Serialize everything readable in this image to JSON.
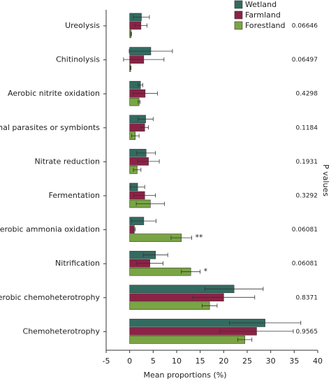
{
  "chart_data": {
    "type": "hbar",
    "categories": [
      "Ureolysis",
      "Chitinolysis",
      "Aerobic nitrite oxidation",
      "Animal parasites or symbionts",
      "Nitrate reduction",
      "Fermentation",
      "Aerobic ammonia oxidation",
      "Nitrification",
      "Aerobic chemoheterotrophy",
      "Chemoheterotrophy"
    ],
    "series": [
      {
        "name": "Wetland",
        "color": "#336b61",
        "values": [
          2.5,
          4.5,
          2.3,
          3.4,
          3.5,
          1.7,
          3.0,
          5.5,
          22.2,
          28.8
        ],
        "errors": [
          1.7,
          4.6,
          0.5,
          1.6,
          2.0,
          1.5,
          2.6,
          2.6,
          6.2,
          7.6
        ]
      },
      {
        "name": "Farmland",
        "color": "#8b2346",
        "values": [
          2.4,
          3.0,
          3.3,
          3.2,
          4.0,
          3.2,
          1.0,
          4.3,
          20.0,
          27.0
        ],
        "errors": [
          1.3,
          4.3,
          2.6,
          0.8,
          2.3,
          2.3,
          0.2,
          2.8,
          6.6,
          7.8
        ]
      },
      {
        "name": "Forestland",
        "color": "#7aa544",
        "values": [
          0.3,
          0.2,
          2.0,
          1.2,
          1.6,
          4.4,
          11.0,
          13.0,
          17.0,
          24.5
        ],
        "errors": [
          0.1,
          0.1,
          0.2,
          0.8,
          0.8,
          3.0,
          2.2,
          2.0,
          1.6,
          1.5
        ]
      }
    ],
    "p_values": [
      "0.06646",
      "0.06497",
      "0.4298",
      "0.1184",
      "0.1931",
      "0.3292",
      "0.06081",
      "0.06081",
      "0.8371",
      "0.9565"
    ],
    "significance": [
      null,
      null,
      null,
      null,
      null,
      null,
      "**",
      "*",
      null,
      null
    ],
    "p_axis_label": "P values",
    "x_label": "Mean proportions (%)",
    "xlim": [
      -5,
      40
    ],
    "xticks": [
      -5,
      0,
      5,
      10,
      15,
      20,
      25,
      30,
      35,
      40
    ]
  }
}
